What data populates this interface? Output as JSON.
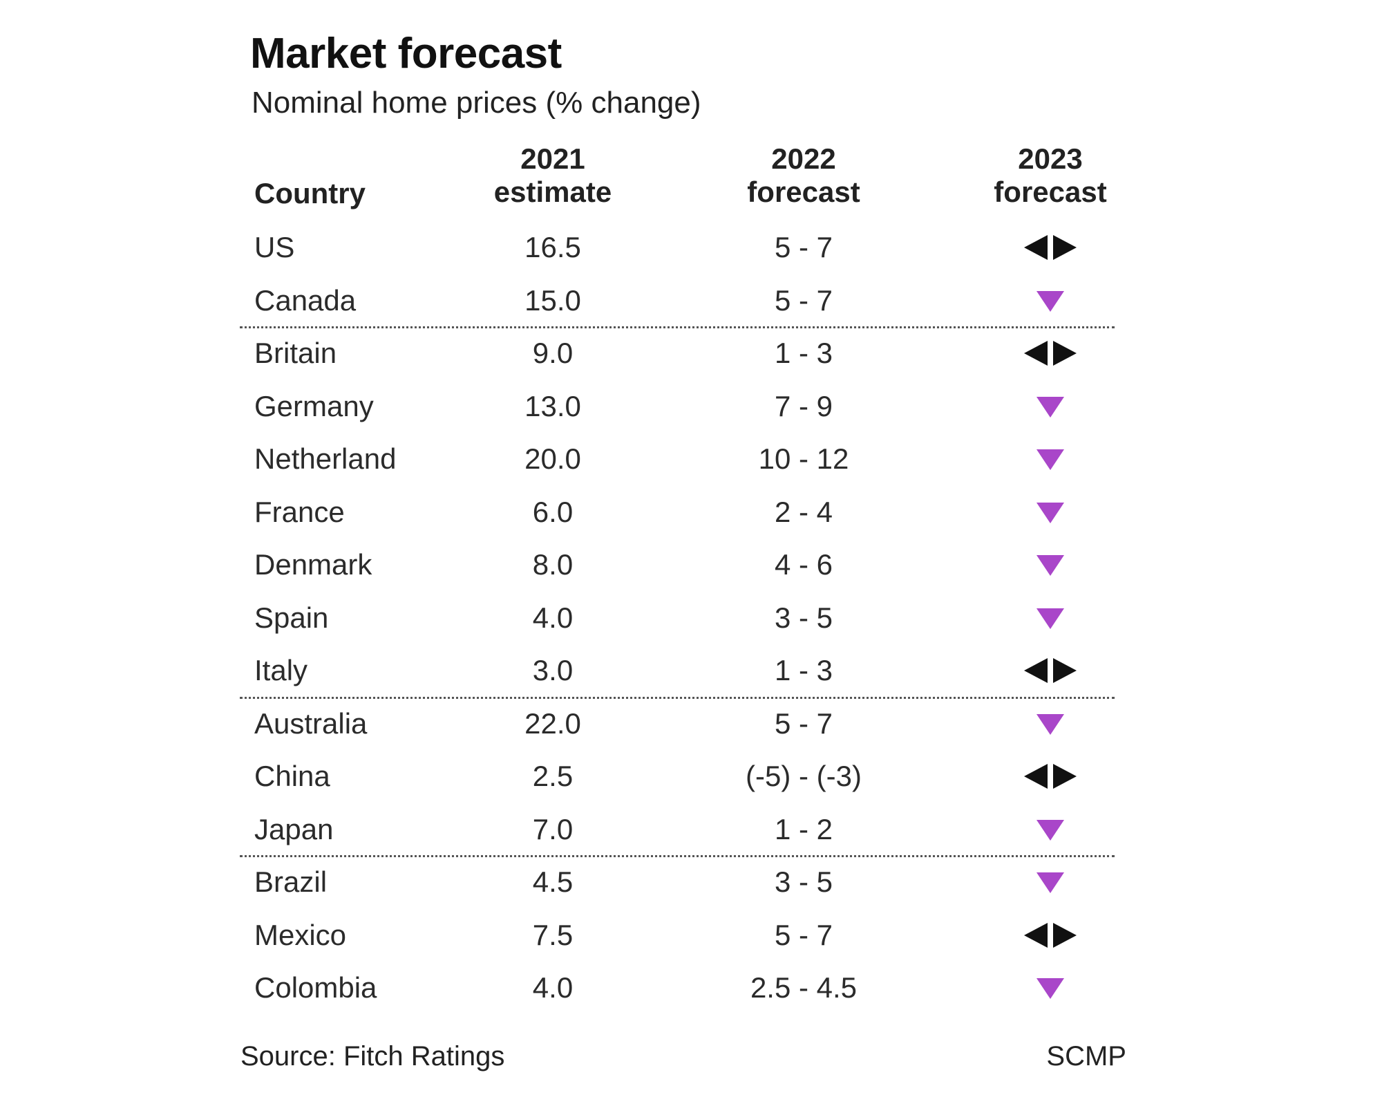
{
  "header": {
    "title": "Market forecast",
    "subtitle": "Nominal home prices (% change)"
  },
  "columns": {
    "country": "Country",
    "estimate_2021": "2021\nestimate",
    "forecast_2022": "2022\nforecast",
    "forecast_2023": "2023\nforecast"
  },
  "footer": {
    "source": "Source: Fitch Ratings",
    "credit": "SCMP"
  },
  "colors": {
    "down": "#a946c9",
    "neutral": "#111111",
    "text": "#2b2b2b"
  },
  "chart_data": {
    "type": "table",
    "title": "Market forecast",
    "subtitle": "Nominal home prices (% change)",
    "columns": [
      "Country",
      "2021 estimate",
      "2022 forecast",
      "2023 forecast"
    ],
    "rows": [
      {
        "country": "US",
        "estimate_2021": "16.5",
        "forecast_2022": "5 - 7",
        "forecast_2023": "neutral",
        "group": 1
      },
      {
        "country": "Canada",
        "estimate_2021": "15.0",
        "forecast_2022": "5 - 7",
        "forecast_2023": "down",
        "group": 1
      },
      {
        "country": "Britain",
        "estimate_2021": "9.0",
        "forecast_2022": "1 - 3",
        "forecast_2023": "neutral",
        "group": 2
      },
      {
        "country": "Germany",
        "estimate_2021": "13.0",
        "forecast_2022": "7 - 9",
        "forecast_2023": "down",
        "group": 2
      },
      {
        "country": "Netherland",
        "estimate_2021": "20.0",
        "forecast_2022": "10 - 12",
        "forecast_2023": "down",
        "group": 2
      },
      {
        "country": "France",
        "estimate_2021": "6.0",
        "forecast_2022": "2 - 4",
        "forecast_2023": "down",
        "group": 2
      },
      {
        "country": "Denmark",
        "estimate_2021": "8.0",
        "forecast_2022": "4 - 6",
        "forecast_2023": "down",
        "group": 2
      },
      {
        "country": "Spain",
        "estimate_2021": "4.0",
        "forecast_2022": "3 - 5",
        "forecast_2023": "down",
        "group": 2
      },
      {
        "country": "Italy",
        "estimate_2021": "3.0",
        "forecast_2022": "1 - 3",
        "forecast_2023": "neutral",
        "group": 2
      },
      {
        "country": "Australia",
        "estimate_2021": "22.0",
        "forecast_2022": "5 - 7",
        "forecast_2023": "down",
        "group": 3
      },
      {
        "country": "China",
        "estimate_2021": "2.5",
        "forecast_2022": "(-5) - (-3)",
        "forecast_2023": "neutral",
        "group": 3
      },
      {
        "country": "Japan",
        "estimate_2021": "7.0",
        "forecast_2022": "1 - 2",
        "forecast_2023": "down",
        "group": 3
      },
      {
        "country": "Brazil",
        "estimate_2021": "4.5",
        "forecast_2022": "3 - 5",
        "forecast_2023": "down",
        "group": 4
      },
      {
        "country": "Mexico",
        "estimate_2021": "7.5",
        "forecast_2022": "5 - 7",
        "forecast_2023": "neutral",
        "group": 4
      },
      {
        "country": "Colombia",
        "estimate_2021": "4.0",
        "forecast_2022": "2.5 - 4.5",
        "forecast_2023": "down",
        "group": 4
      }
    ]
  }
}
